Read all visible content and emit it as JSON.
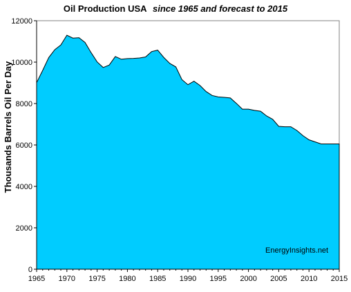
{
  "chart_data": {
    "type": "area",
    "title": "Oil Production USA",
    "subtitle": "since 1965 and forecast to 2015",
    "ylabel": "Thousands Barrels Oil Per Day",
    "xlabel": "",
    "xlim": [
      1965,
      2015
    ],
    "ylim": [
      0,
      12000
    ],
    "xticks": [
      "1965",
      "1970",
      "1975",
      "1980",
      "1985",
      "1990",
      "1995",
      "2000",
      "2005",
      "2010",
      "2015"
    ],
    "yticks": [
      "0",
      "2000",
      "4000",
      "6000",
      "8000",
      "10000",
      "12000"
    ],
    "grid": false,
    "annotation": "EnergyInsights.net",
    "colors": {
      "fill": "#00ccff",
      "plot_background": "#ffffff",
      "axis": "#808080"
    },
    "x": [
      1965,
      1966,
      1967,
      1968,
      1969,
      1970,
      1971,
      1972,
      1973,
      1974,
      1975,
      1976,
      1977,
      1978,
      1979,
      1980,
      1981,
      1982,
      1983,
      1984,
      1985,
      1986,
      1987,
      1988,
      1989,
      1990,
      1991,
      1992,
      1993,
      1994,
      1995,
      1996,
      1997,
      1998,
      1999,
      2000,
      2001,
      2002,
      2003,
      2004,
      2005,
      2006,
      2007,
      2008,
      2009,
      2010,
      2011,
      2012,
      2013,
      2014,
      2015
    ],
    "values": [
      9010,
      9600,
      10220,
      10600,
      10830,
      11300,
      11160,
      11180,
      10950,
      10460,
      10010,
      9740,
      9860,
      10270,
      10140,
      10170,
      10180,
      10200,
      10250,
      10510,
      10580,
      10230,
      9940,
      9770,
      9160,
      8910,
      9080,
      8870,
      8580,
      8390,
      8320,
      8300,
      8270,
      8010,
      7730,
      7730,
      7670,
      7630,
      7400,
      7240,
      6900,
      6880,
      6880,
      6700,
      6450,
      6250,
      6150,
      6050,
      6050,
      6050,
      6050
    ]
  }
}
